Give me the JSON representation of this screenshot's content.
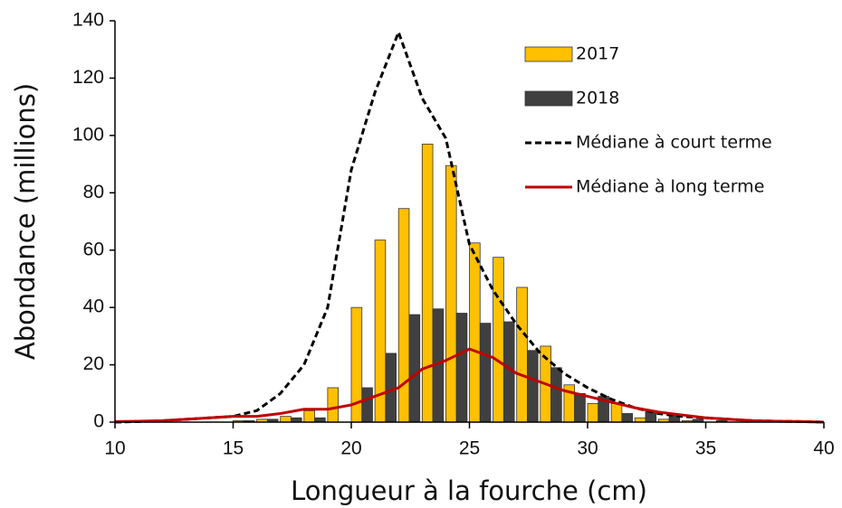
{
  "chart_data": {
    "type": "bar",
    "x_label": "Longueur à la fourche (cm)",
    "y_label": "Abondance (millions)",
    "x": [
      10,
      11,
      12,
      13,
      14,
      15,
      16,
      17,
      18,
      19,
      20,
      21,
      22,
      23,
      24,
      25,
      26,
      27,
      28,
      29,
      30,
      31,
      32,
      33,
      34,
      35,
      36,
      37,
      38,
      39,
      40
    ],
    "series": [
      {
        "name": "2017",
        "type": "bar",
        "color": "#ffc000",
        "values": [
          0,
          0,
          0,
          0,
          0,
          0.5,
          1,
          2,
          4,
          12,
          40,
          63.5,
          74.5,
          97,
          89.5,
          62.5,
          57.5,
          47,
          26.5,
          13,
          6.5,
          6.5,
          1.5,
          1,
          0.5,
          0,
          0,
          0,
          0,
          0,
          0
        ]
      },
      {
        "name": "2018",
        "type": "bar",
        "color": "#404040",
        "values": [
          0,
          0,
          0,
          0,
          0,
          0.5,
          1,
          1.5,
          1.5,
          0,
          12,
          24,
          37.5,
          39.5,
          38,
          34.5,
          35,
          25,
          19,
          10,
          9,
          3,
          4,
          2.5,
          1,
          0.5,
          0,
          0,
          0,
          0,
          0
        ]
      },
      {
        "name": "Médiane à court terme",
        "type": "line",
        "dash": true,
        "color": "#000000",
        "values": [
          0,
          0.2,
          0.5,
          1,
          1.5,
          2,
          4,
          10,
          20,
          40,
          88,
          115,
          136,
          113,
          99,
          62,
          46,
          34,
          24,
          17,
          12,
          8,
          5,
          3,
          2,
          1.5,
          1,
          0.5,
          0.3,
          0.2,
          0
        ]
      },
      {
        "name": "Médiane à long terme",
        "type": "line",
        "dash": false,
        "color": "#c00000",
        "values": [
          0.2,
          0.3,
          0.5,
          1,
          1.5,
          2,
          2,
          3,
          4.5,
          4.5,
          6,
          9,
          12,
          18.5,
          21.5,
          25.5,
          22.5,
          17,
          14,
          11,
          9,
          7,
          5,
          3.5,
          2.5,
          1.5,
          1,
          0.5,
          0.3,
          0.2,
          0
        ]
      }
    ],
    "xlim": [
      10,
      40
    ],
    "xticks": [
      10,
      15,
      20,
      25,
      30,
      35,
      40
    ],
    "ylim": [
      0,
      140
    ],
    "yticks": [
      0,
      20,
      40,
      60,
      80,
      100,
      120,
      140
    ],
    "grid": false,
    "legend": "upper right"
  }
}
